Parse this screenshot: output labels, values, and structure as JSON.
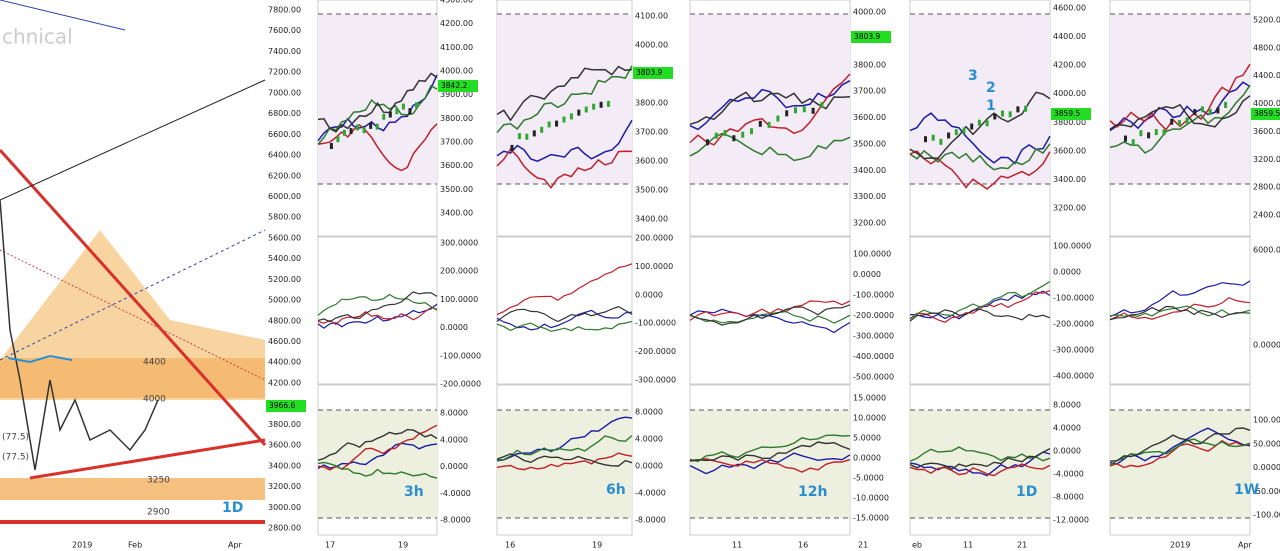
{
  "panels": [
    {
      "top_axis": [
        "7800.00",
        "7600.00",
        "7400.00",
        "7200.00",
        "7000.00",
        "6800.00",
        "6600.00",
        "6400.00",
        "6200.00",
        "6000.00",
        "5800.00",
        "5600.00",
        "5400.00",
        "5200.00",
        "5000.00",
        "4800.00",
        "4600.00",
        "4400.00",
        "4200.00",
        "4000.00",
        "3800.00",
        "3600.00",
        "3400.00",
        "3200.00",
        "3000.00",
        "2800.00"
      ],
      "price_tag": "3966.6",
      "timeframe": "1D",
      "x_labels": [
        "2019",
        "Feb",
        "Apr"
      ],
      "title": "chnical",
      "annotations": [
        "4400",
        "4000",
        "3250",
        "2900",
        "(77.5)",
        "(77.5)"
      ]
    },
    {
      "top_axis": [
        "4300.00",
        "4200.00",
        "4100.00",
        "4000.00",
        "3900.00",
        "3800.00",
        "3700.00",
        "3600.00",
        "3500.00",
        "3400.00"
      ],
      "price_tag": "3842.2",
      "mid_axis": [
        "300.0000",
        "200.0000",
        "100.0000",
        "0.0000",
        "-100.0000",
        "-200.0000"
      ],
      "bottom_axis": [
        "8.0000",
        "4.0000",
        "0.0000",
        "-4.0000",
        "-8.0000"
      ],
      "timeframe": "3h",
      "x_labels": [
        "17",
        "19"
      ]
    },
    {
      "top_axis": [
        "4100.00",
        "4000.00",
        "3900.00",
        "3800.00",
        "3700.00",
        "3600.00",
        "3500.00",
        "3400.00"
      ],
      "price_tag": "3803.9",
      "mid_axis": [
        "200.0000",
        "100.0000",
        "0.0000",
        "-100.0000",
        "-200.0000",
        "-300.0000"
      ],
      "bottom_axis": [
        "8.0000",
        "4.0000",
        "0.0000",
        "-4.0000",
        "-8.0000"
      ],
      "timeframe": "6h",
      "x_labels": [
        "16",
        "19"
      ]
    },
    {
      "top_axis": [
        "4000.00",
        "3900.00",
        "3800.00",
        "3700.00",
        "3600.00",
        "3500.00",
        "3400.00",
        "3300.00",
        "3200.00"
      ],
      "price_tag": "3803.9",
      "mid_axis": [
        "100.0000",
        "0.0000",
        "-100.0000",
        "-200.0000",
        "-300.0000",
        "-400.0000",
        "-500.0000"
      ],
      "bottom_axis": [
        "15.0000",
        "10.0000",
        "5.0000",
        "0.0000",
        "-5.0000",
        "-10.0000",
        "-15.0000"
      ],
      "timeframe": "12h",
      "x_labels": [
        "11",
        "16",
        "21"
      ]
    },
    {
      "top_axis": [
        "4600.00",
        "4400.00",
        "4200.00",
        "4000.00",
        "3800.00",
        "3600.00",
        "3400.00",
        "3200.00"
      ],
      "price_tag": "3859.5",
      "mid_axis": [
        "100.0000",
        "0.0000",
        "-100.0000",
        "-200.0000",
        "-300.0000",
        "-400.0000"
      ],
      "bottom_axis": [
        "8.0000",
        "4.0000",
        "0.0000",
        "-4.0000",
        "-8.0000",
        "-12.0000"
      ],
      "timeframe": "1D",
      "x_labels": [
        "eb",
        "11",
        "21"
      ],
      "annotations": [
        "3",
        "2",
        "1"
      ]
    },
    {
      "top_axis": [
        "5200.00",
        "4800.00",
        "4400.00",
        "4000.00",
        "3600.00",
        "3200.00",
        "2800.00",
        "2400.00"
      ],
      "price_tag": "3859.5",
      "mid_axis": [
        "6000.0000",
        "0.0000"
      ],
      "bottom_axis": [
        "100.0000",
        "50.0000",
        "0.0000",
        "-50.0000",
        "-100.0000"
      ],
      "timeframe": "1W",
      "x_labels": [
        "2019",
        "Apr"
      ]
    }
  ]
}
